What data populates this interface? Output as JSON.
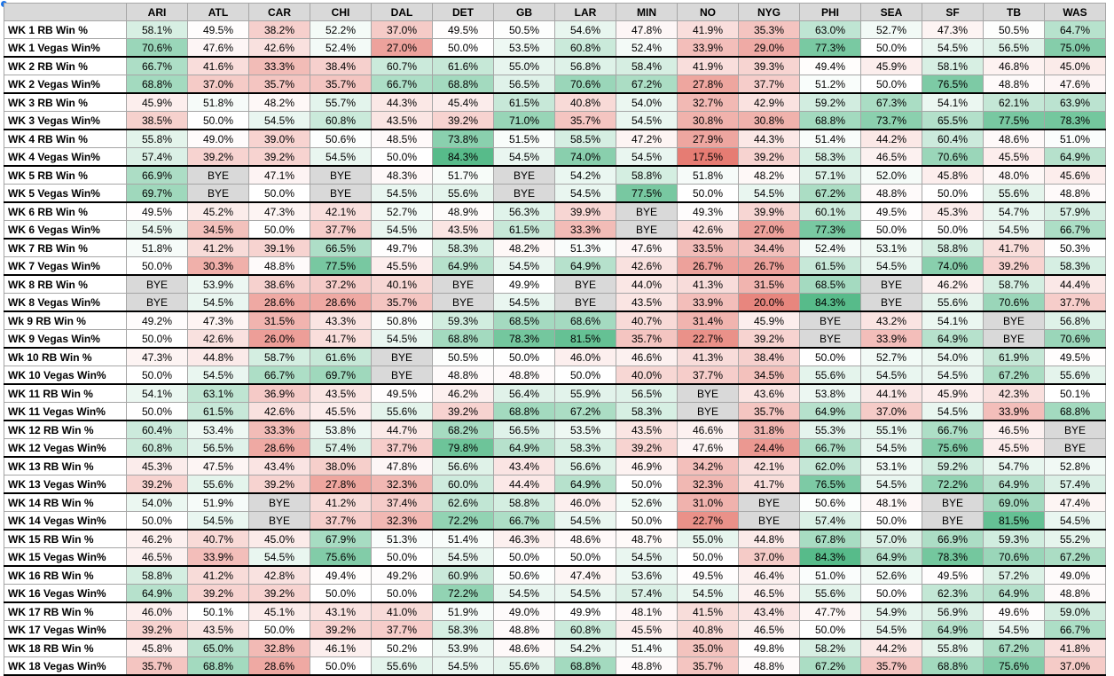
{
  "teams": [
    "ARI",
    "ATL",
    "CAR",
    "CHI",
    "DAL",
    "DET",
    "GB",
    "LAR",
    "MIN",
    "NO",
    "NYG",
    "PHI",
    "SEA",
    "SF",
    "TB",
    "WAS"
  ],
  "rows": [
    {
      "label": "WK 1 RB Win %",
      "values": [
        "58.1%",
        "49.5%",
        "38.2%",
        "52.2%",
        "37.0%",
        "49.5%",
        "50.5%",
        "54.6%",
        "47.8%",
        "41.9%",
        "35.3%",
        "63.0%",
        "52.7%",
        "47.3%",
        "50.5%",
        "64.7%"
      ]
    },
    {
      "label": "WK 1 Vegas Win%",
      "values": [
        "70.6%",
        "47.6%",
        "42.6%",
        "52.4%",
        "27.0%",
        "50.0%",
        "53.5%",
        "60.8%",
        "52.4%",
        "33.9%",
        "29.0%",
        "77.3%",
        "50.0%",
        "54.5%",
        "56.5%",
        "75.0%"
      ]
    },
    {
      "label": "WK 2 RB Win %",
      "values": [
        "66.7%",
        "41.6%",
        "33.3%",
        "38.4%",
        "60.7%",
        "61.6%",
        "55.0%",
        "56.8%",
        "58.4%",
        "41.9%",
        "39.3%",
        "49.4%",
        "45.9%",
        "58.1%",
        "46.8%",
        "45.0%"
      ]
    },
    {
      "label": "WK 2 Vegas Win%",
      "values": [
        "68.8%",
        "37.0%",
        "35.7%",
        "35.7%",
        "66.7%",
        "68.8%",
        "56.5%",
        "70.6%",
        "67.2%",
        "27.8%",
        "37.7%",
        "51.2%",
        "50.0%",
        "76.5%",
        "48.8%",
        "47.6%"
      ]
    },
    {
      "label": "WK 3 RB Win %",
      "values": [
        "45.9%",
        "51.8%",
        "48.2%",
        "55.7%",
        "44.3%",
        "45.4%",
        "61.5%",
        "40.8%",
        "54.0%",
        "32.7%",
        "42.9%",
        "59.2%",
        "67.3%",
        "54.1%",
        "62.1%",
        "63.9%"
      ]
    },
    {
      "label": "WK 3 Vegas Win%",
      "values": [
        "38.5%",
        "50.0%",
        "54.5%",
        "60.8%",
        "43.5%",
        "39.2%",
        "71.0%",
        "35.7%",
        "54.5%",
        "30.8%",
        "30.8%",
        "68.8%",
        "73.7%",
        "65.5%",
        "77.5%",
        "78.3%"
      ]
    },
    {
      "label": "WK 4 RB Win %",
      "values": [
        "55.8%",
        "49.0%",
        "39.0%",
        "50.6%",
        "48.5%",
        "73.8%",
        "51.5%",
        "58.5%",
        "47.2%",
        "27.9%",
        "44.3%",
        "51.4%",
        "44.2%",
        "60.4%",
        "48.6%",
        "51.0%"
      ]
    },
    {
      "label": "WK 4 Vegas Win%",
      "values": [
        "57.4%",
        "39.2%",
        "39.2%",
        "54.5%",
        "50.0%",
        "84.3%",
        "54.5%",
        "74.0%",
        "54.5%",
        "17.5%",
        "39.2%",
        "58.3%",
        "46.5%",
        "70.6%",
        "45.5%",
        "64.9%"
      ]
    },
    {
      "label": "WK 5 RB Win %",
      "values": [
        "66.9%",
        "BYE",
        "47.1%",
        "BYE",
        "48.3%",
        "51.7%",
        "BYE",
        "54.2%",
        "58.8%",
        "51.8%",
        "48.2%",
        "57.1%",
        "52.0%",
        "45.8%",
        "48.0%",
        "45.6%"
      ]
    },
    {
      "label": "WK 5 Vegas Win%",
      "values": [
        "69.7%",
        "BYE",
        "50.0%",
        "BYE",
        "54.5%",
        "55.6%",
        "BYE",
        "54.5%",
        "77.5%",
        "50.0%",
        "54.5%",
        "67.2%",
        "48.8%",
        "50.0%",
        "55.6%",
        "48.8%"
      ]
    },
    {
      "label": "WK 6 RB Win %",
      "values": [
        "49.5%",
        "45.2%",
        "47.3%",
        "42.1%",
        "52.7%",
        "48.9%",
        "56.3%",
        "39.9%",
        "BYE",
        "49.3%",
        "39.9%",
        "60.1%",
        "49.5%",
        "45.3%",
        "54.7%",
        "57.9%"
      ]
    },
    {
      "label": "WK 6 Vegas Win%",
      "values": [
        "54.5%",
        "34.5%",
        "50.0%",
        "37.7%",
        "54.5%",
        "43.5%",
        "61.5%",
        "33.3%",
        "BYE",
        "42.6%",
        "27.0%",
        "77.3%",
        "50.0%",
        "50.0%",
        "54.5%",
        "66.7%"
      ]
    },
    {
      "label": "WK 7 RB Win %",
      "values": [
        "51.8%",
        "41.2%",
        "39.1%",
        "66.5%",
        "49.7%",
        "58.3%",
        "48.2%",
        "51.3%",
        "47.6%",
        "33.5%",
        "34.4%",
        "52.4%",
        "53.1%",
        "58.8%",
        "41.7%",
        "50.3%"
      ]
    },
    {
      "label": "WK 7 Vegas Win%",
      "values": [
        "50.0%",
        "30.3%",
        "48.8%",
        "77.5%",
        "45.5%",
        "64.9%",
        "54.5%",
        "64.9%",
        "42.6%",
        "26.7%",
        "26.7%",
        "61.5%",
        "54.5%",
        "74.0%",
        "39.2%",
        "58.3%"
      ]
    },
    {
      "label": "WK 8 RB Win %",
      "values": [
        "BYE",
        "53.9%",
        "38.6%",
        "37.2%",
        "40.1%",
        "BYE",
        "49.9%",
        "BYE",
        "44.0%",
        "41.3%",
        "31.5%",
        "68.5%",
        "BYE",
        "46.2%",
        "58.7%",
        "44.4%"
      ]
    },
    {
      "label": "WK 8 Vegas Win%",
      "values": [
        "BYE",
        "54.5%",
        "28.6%",
        "28.6%",
        "35.7%",
        "BYE",
        "54.5%",
        "BYE",
        "43.5%",
        "33.9%",
        "20.0%",
        "84.3%",
        "BYE",
        "55.6%",
        "70.6%",
        "37.7%"
      ]
    },
    {
      "label": "Wk 9 RB Win %",
      "values": [
        "49.2%",
        "47.3%",
        "31.5%",
        "43.3%",
        "50.8%",
        "59.3%",
        "68.5%",
        "68.6%",
        "40.7%",
        "31.4%",
        "45.9%",
        "BYE",
        "43.2%",
        "54.1%",
        "BYE",
        "56.8%"
      ]
    },
    {
      "label": "WK 9 Vegas Win%",
      "values": [
        "50.0%",
        "42.6%",
        "26.0%",
        "41.7%",
        "54.5%",
        "68.8%",
        "78.3%",
        "81.5%",
        "35.7%",
        "22.7%",
        "39.2%",
        "BYE",
        "33.9%",
        "64.9%",
        "BYE",
        "70.6%"
      ]
    },
    {
      "label": "Wk 10 RB Win %",
      "values": [
        "47.3%",
        "44.8%",
        "58.7%",
        "61.6%",
        "BYE",
        "50.5%",
        "50.0%",
        "46.0%",
        "46.6%",
        "41.3%",
        "38.4%",
        "50.0%",
        "52.7%",
        "54.0%",
        "61.9%",
        "49.5%"
      ]
    },
    {
      "label": "WK 10 Vegas Win%",
      "values": [
        "50.0%",
        "54.5%",
        "66.7%",
        "69.7%",
        "BYE",
        "48.8%",
        "48.8%",
        "50.0%",
        "40.0%",
        "37.7%",
        "34.5%",
        "55.6%",
        "54.5%",
        "54.5%",
        "67.2%",
        "55.6%"
      ]
    },
    {
      "label": "WK 11 RB Win %",
      "values": [
        "54.1%",
        "63.1%",
        "36.9%",
        "43.5%",
        "49.5%",
        "46.2%",
        "56.4%",
        "55.9%",
        "56.5%",
        "BYE",
        "43.6%",
        "53.8%",
        "44.1%",
        "45.9%",
        "42.3%",
        "50.1%"
      ]
    },
    {
      "label": "WK 11 Vegas Win%",
      "values": [
        "50.0%",
        "61.5%",
        "42.6%",
        "45.5%",
        "55.6%",
        "39.2%",
        "68.8%",
        "67.2%",
        "58.3%",
        "BYE",
        "35.7%",
        "64.9%",
        "37.0%",
        "54.5%",
        "33.9%",
        "68.8%"
      ]
    },
    {
      "label": "WK 12 RB Win %",
      "values": [
        "60.4%",
        "53.4%",
        "33.3%",
        "53.8%",
        "44.7%",
        "68.2%",
        "56.5%",
        "53.5%",
        "43.5%",
        "46.6%",
        "31.8%",
        "55.3%",
        "55.1%",
        "66.7%",
        "46.5%",
        "BYE"
      ]
    },
    {
      "label": "WK 12 Vegas Win%",
      "values": [
        "60.8%",
        "56.5%",
        "28.6%",
        "57.4%",
        "37.7%",
        "79.8%",
        "64.9%",
        "58.3%",
        "39.2%",
        "47.6%",
        "24.4%",
        "66.7%",
        "54.5%",
        "75.6%",
        "45.5%",
        "BYE"
      ]
    },
    {
      "label": "WK 13 RB Win %",
      "values": [
        "45.3%",
        "47.5%",
        "43.4%",
        "38.0%",
        "47.8%",
        "56.6%",
        "43.4%",
        "56.6%",
        "46.9%",
        "34.2%",
        "42.1%",
        "62.0%",
        "53.1%",
        "59.2%",
        "54.7%",
        "52.8%"
      ]
    },
    {
      "label": "WK 13 Vegas Win%",
      "values": [
        "39.2%",
        "55.6%",
        "39.2%",
        "27.8%",
        "32.3%",
        "60.0%",
        "44.4%",
        "64.9%",
        "50.0%",
        "32.3%",
        "41.7%",
        "76.5%",
        "54.5%",
        "72.2%",
        "64.9%",
        "57.4%"
      ]
    },
    {
      "label": "WK 14 RB Win %",
      "values": [
        "54.0%",
        "51.9%",
        "BYE",
        "41.2%",
        "37.4%",
        "62.6%",
        "58.8%",
        "46.0%",
        "52.6%",
        "31.0%",
        "BYE",
        "50.6%",
        "48.1%",
        "BYE",
        "69.0%",
        "47.4%"
      ]
    },
    {
      "label": "WK 14 Vegas Win%",
      "values": [
        "50.0%",
        "54.5%",
        "BYE",
        "37.7%",
        "32.3%",
        "72.2%",
        "66.7%",
        "54.5%",
        "50.0%",
        "22.7%",
        "BYE",
        "57.4%",
        "50.0%",
        "BYE",
        "81.5%",
        "54.5%"
      ]
    },
    {
      "label": "WK 15 RB Win %",
      "values": [
        "46.2%",
        "40.7%",
        "45.0%",
        "67.9%",
        "51.3%",
        "51.4%",
        "46.3%",
        "48.6%",
        "48.7%",
        "55.0%",
        "44.8%",
        "67.8%",
        "57.0%",
        "66.9%",
        "59.3%",
        "55.2%"
      ]
    },
    {
      "label": "WK 15 Vegas Win%",
      "values": [
        "46.5%",
        "33.9%",
        "54.5%",
        "75.6%",
        "50.0%",
        "54.5%",
        "50.0%",
        "50.0%",
        "54.5%",
        "50.0%",
        "37.0%",
        "84.3%",
        "64.9%",
        "78.3%",
        "70.6%",
        "67.2%"
      ]
    },
    {
      "label": "WK 16 RB Win %",
      "values": [
        "58.8%",
        "41.2%",
        "42.8%",
        "49.4%",
        "49.2%",
        "60.9%",
        "50.6%",
        "47.4%",
        "53.6%",
        "49.5%",
        "46.4%",
        "51.0%",
        "52.6%",
        "49.5%",
        "57.2%",
        "49.0%"
      ]
    },
    {
      "label": "WK 16 Vegas Win%",
      "values": [
        "64.9%",
        "39.2%",
        "39.2%",
        "50.0%",
        "50.0%",
        "72.2%",
        "54.5%",
        "54.5%",
        "57.4%",
        "54.5%",
        "46.5%",
        "55.6%",
        "50.0%",
        "62.3%",
        "64.9%",
        "48.8%"
      ]
    },
    {
      "label": "WK 17 RB Win %",
      "values": [
        "46.0%",
        "50.1%",
        "45.1%",
        "43.1%",
        "41.0%",
        "51.9%",
        "49.0%",
        "49.9%",
        "48.1%",
        "41.5%",
        "43.4%",
        "47.7%",
        "54.9%",
        "56.9%",
        "49.6%",
        "59.0%"
      ]
    },
    {
      "label": "WK 17 Vegas Win%",
      "values": [
        "39.2%",
        "43.5%",
        "50.0%",
        "39.2%",
        "37.7%",
        "58.3%",
        "48.8%",
        "60.8%",
        "45.5%",
        "40.8%",
        "46.5%",
        "50.0%",
        "54.5%",
        "64.9%",
        "54.5%",
        "66.7%"
      ]
    },
    {
      "label": "WK 18 RB Win %",
      "values": [
        "45.8%",
        "65.0%",
        "32.8%",
        "46.1%",
        "50.2%",
        "53.9%",
        "48.6%",
        "54.2%",
        "51.4%",
        "35.0%",
        "49.8%",
        "58.2%",
        "44.2%",
        "55.8%",
        "67.2%",
        "41.8%"
      ]
    },
    {
      "label": "WK 18 Vegas Win%",
      "values": [
        "35.7%",
        "68.8%",
        "28.6%",
        "50.0%",
        "55.6%",
        "54.5%",
        "55.6%",
        "68.8%",
        "48.8%",
        "35.7%",
        "48.8%",
        "67.2%",
        "35.7%",
        "68.8%",
        "75.6%",
        "37.0%"
      ]
    }
  ],
  "colors": {
    "low": "#e67c73",
    "mid": "#ffffff",
    "high": "#57bb8a",
    "bye": "#d9d9d9",
    "header": "#d9d9d9",
    "selection_dot": "#1a73e8"
  }
}
